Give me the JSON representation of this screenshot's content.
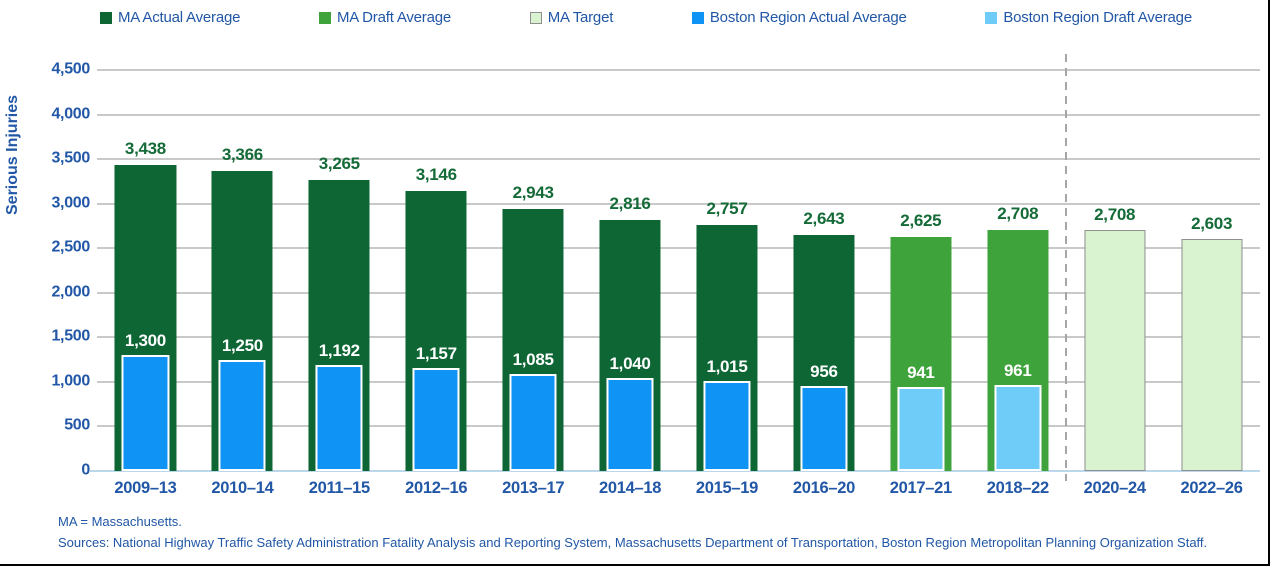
{
  "legend": {
    "items": [
      {
        "label": "MA Actual Average",
        "key": "ma_actual"
      },
      {
        "label": "MA Draft Average",
        "key": "ma_draft"
      },
      {
        "label": "MA Target",
        "key": "ma_target"
      },
      {
        "label": "Boston Region Actual Average",
        "key": "boston_actual"
      },
      {
        "label": "Boston Region Draft Average",
        "key": "boston_draft"
      }
    ]
  },
  "chart_data": {
    "type": "bar",
    "title": "",
    "xlabel": "",
    "ylabel": "Serious Injuries",
    "ylim": [
      0,
      4500
    ],
    "ytick_interval": 500,
    "grid": true,
    "legend_position": "top",
    "categories": [
      "2009–13",
      "2010–14",
      "2011–15",
      "2012–16",
      "2013–17",
      "2014–18",
      "2015–19",
      "2016–20",
      "2017–21",
      "2018–22",
      "2020–24",
      "2022–26"
    ],
    "series": [
      {
        "name": "MA Actual Average",
        "key": "ma_actual",
        "values": [
          3438,
          3366,
          3265,
          3146,
          2943,
          2816,
          2757,
          2643,
          null,
          null,
          null,
          null
        ]
      },
      {
        "name": "MA Draft Average",
        "key": "ma_draft",
        "values": [
          null,
          null,
          null,
          null,
          null,
          null,
          null,
          null,
          2625,
          2708,
          null,
          null
        ]
      },
      {
        "name": "MA Target",
        "key": "ma_target",
        "values": [
          null,
          null,
          null,
          null,
          null,
          null,
          null,
          null,
          null,
          null,
          2708,
          2603
        ]
      },
      {
        "name": "Boston Region Actual Average",
        "key": "boston_actual",
        "values": [
          1300,
          1250,
          1192,
          1157,
          1085,
          1040,
          1015,
          956,
          null,
          null,
          null,
          null
        ]
      },
      {
        "name": "Boston Region Draft Average",
        "key": "boston_draft",
        "values": [
          null,
          null,
          null,
          null,
          null,
          null,
          null,
          null,
          941,
          961,
          null,
          null
        ]
      }
    ],
    "separator_before_index": 10
  },
  "footnotes": {
    "abbreviation": "MA = Massachusetts.",
    "sources": "Sources: National Highway Traffic Safety Administration Fatality Analysis and Reporting System, Massachusetts Department of Transportation, Boston Region Metropolitan Planning Organization Staff."
  },
  "colors": {
    "ma_actual": "#0d6634",
    "ma_draft": "#3fa33c",
    "ma_target": "#d9f2cf",
    "ma_target_border": "#8f8f8f",
    "boston_actual": "#0f93f4",
    "boston_draft": "#6fcbf8",
    "axis_text": "#2157a6",
    "value_label_green": "#156b38",
    "value_label_white": "#ffffff",
    "gridline": "#c9c9c9",
    "axis_line": "#bdd7ea",
    "separator": "#a6a6a6",
    "footnote_text": "#2157a6",
    "frame_border": "#000000"
  }
}
